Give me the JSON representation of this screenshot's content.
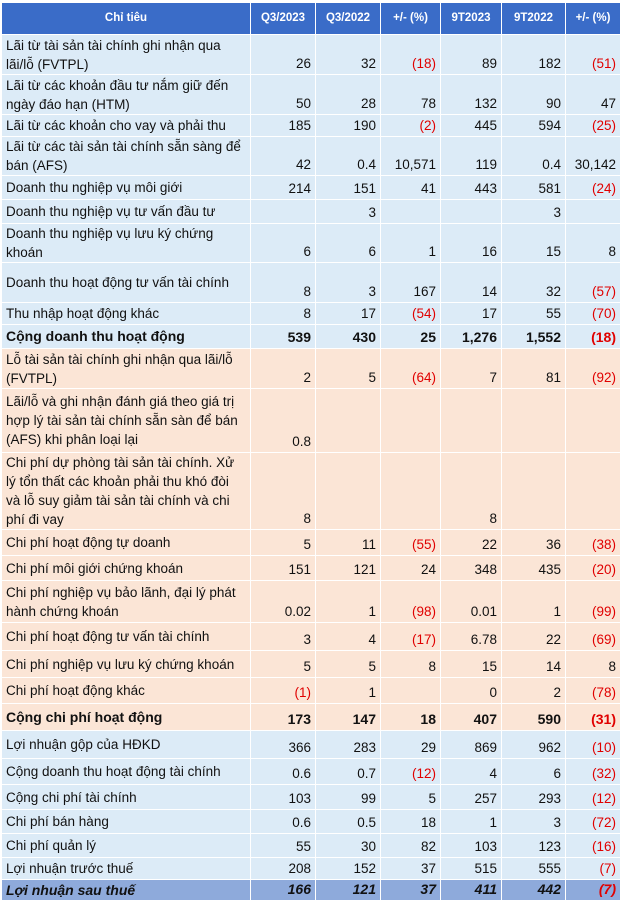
{
  "table": {
    "header": [
      "Chỉ tiêu",
      "Q3/2023",
      "Q3/2022",
      "+/- (%)",
      "9T2023",
      "9T2022",
      "+/- (%)"
    ],
    "rows": [
      [
        "Lãi từ tài sản tài chính ghi nhận qua lãi/lỗ (FVTPL)",
        "26",
        "32",
        "(18)",
        "89",
        "182",
        "(51)"
      ],
      [
        "Lãi từ các khoản đầu tư nắm giữ đến ngày đáo hạn (HTM)",
        "50",
        "28",
        "78",
        "132",
        "90",
        "47"
      ],
      [
        "Lãi từ các khoản cho vay và phải thu",
        "185",
        "190",
        "(2)",
        "445",
        "594",
        "(25)"
      ],
      [
        "Lãi từ các tài sản tài chính sẵn sàng để bán (AFS)",
        "42",
        "0.4",
        "10,571",
        "119",
        "0.4",
        "30,142"
      ],
      [
        "Doanh thu nghiệp vụ môi giới",
        "214",
        "151",
        "41",
        "443",
        "581",
        "(24)"
      ],
      [
        "Doanh thu nghiệp vụ tư vấn đầu tư",
        null,
        "3",
        null,
        null,
        "3",
        null
      ],
      [
        "Doanh thu nghiệp vụ lưu ký chứng khoán",
        "6",
        "6",
        "1",
        "16",
        "15",
        "8"
      ],
      [
        "Doanh thu hoạt động tư vấn tài chính",
        "8",
        "3",
        "167",
        "14",
        "32",
        "(57)"
      ],
      [
        "Thu nhập hoạt động khác",
        "8",
        "17",
        "(54)",
        "17",
        "55",
        "(70)"
      ],
      [
        "Cộng doanh thu hoạt động",
        "539",
        "430",
        "25",
        "1,276",
        "1,552",
        "(18)"
      ],
      [
        "Lỗ tài sản tài chính ghi nhận qua lãi/lỗ (FVTPL)",
        "2",
        "5",
        "(64)",
        "7",
        "81",
        "(92)"
      ],
      [
        "Lãi/lỗ và ghi nhận đánh giá theo giá trị hợp lý tài sản tài chính sẵn sàn để bán (AFS) khi phân loại lại",
        "0.8",
        null,
        null,
        null,
        null,
        null
      ],
      [
        "Chi phí dự phòng tài sản tài chính. Xử lý tổn thất các khoản phải thu khó đòi và lỗ suy giảm tài sản tài chính và chi phí đi vay",
        "8",
        null,
        null,
        "8",
        null,
        null
      ],
      [
        "Chi phí hoạt động tự doanh",
        "5",
        "11",
        "(55)",
        "22",
        "36",
        "(38)"
      ],
      [
        "Chi phí môi giới chứng khoán",
        "151",
        "121",
        "24",
        "348",
        "435",
        "(20)"
      ],
      [
        "Chi phí nghiệp vụ bảo lãnh, đại lý phát hành chứng khoán",
        "0.02",
        "1",
        "(98)",
        "0.01",
        "1",
        "(99)"
      ],
      [
        "Chi phí hoạt động tư vấn tài chính",
        "3",
        "4",
        "(17)",
        "6.78",
        "22",
        "(69)"
      ],
      [
        "Chi phí nghiệp vụ lưu ký chứng khoán",
        "5",
        "5",
        "8",
        "15",
        "14",
        "8"
      ],
      [
        "Chi phí hoạt động khác",
        "(1)",
        "1",
        null,
        "0",
        "2",
        "(78)"
      ],
      [
        "Cộng chi phí hoạt động",
        "173",
        "147",
        "18",
        "407",
        "590",
        "(31)"
      ],
      [
        "Lợi nhuận gộp của HĐKD",
        "366",
        "283",
        "29",
        "869",
        "962",
        "(10)"
      ],
      [
        "Cộng doanh thu hoạt động tài chính",
        "0.6",
        "0.7",
        "(12)",
        "4",
        "6",
        "(32)"
      ],
      [
        "Cộng chi phí tài chính",
        "103",
        "99",
        "5",
        "257",
        "293",
        "(12)"
      ],
      [
        "Chi phí bán hàng",
        "0.6",
        "0.5",
        "18",
        "1",
        "3",
        "(72)"
      ],
      [
        "Chi phí quản lý",
        "55",
        "30",
        "82",
        "103",
        "123",
        "(16)"
      ],
      [
        "Lợi nhuận trước thuế",
        "208",
        "152",
        "37",
        "515",
        "555",
        "(7)"
      ],
      [
        "Lợi nhuận sau thuế",
        "166",
        "121",
        "37",
        "411",
        "442",
        "(7)"
      ]
    ]
  }
}
